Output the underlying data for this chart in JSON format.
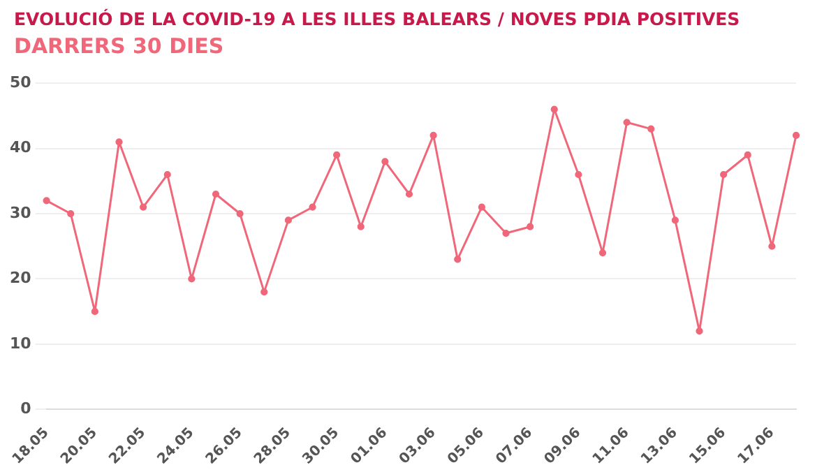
{
  "chart_data": {
    "type": "line",
    "title": "EVOLUCIÓ DE LA COVID-19 A LES ILLES BALEARS / NOVES PDIA POSITIVES",
    "subtitle": "DARRERS 30 DIES",
    "categories": [
      "18.05",
      null,
      "20.05",
      null,
      "22.05",
      null,
      "24.05",
      null,
      "26.05",
      null,
      "28.05",
      null,
      "30.05",
      null,
      "01.06",
      null,
      "03.06",
      null,
      "05.06",
      null,
      "07.06",
      null,
      "09.06",
      null,
      "11.06",
      null,
      "13.06",
      null,
      "15.06",
      null,
      "17.06",
      null
    ],
    "series": [
      {
        "color": "#f0677a",
        "values": [
          32,
          30,
          15,
          41,
          31,
          36,
          20,
          33,
          30,
          18,
          29,
          31,
          39,
          28,
          38,
          33,
          42,
          23,
          31,
          27,
          28,
          46,
          36,
          24,
          44,
          43,
          29,
          12,
          36,
          39,
          25,
          42
        ]
      }
    ],
    "ylim": [
      0,
      50
    ],
    "yticks": [
      0,
      10,
      20,
      30,
      40,
      50
    ],
    "grid": "y",
    "marker": "circle",
    "legend": false
  }
}
